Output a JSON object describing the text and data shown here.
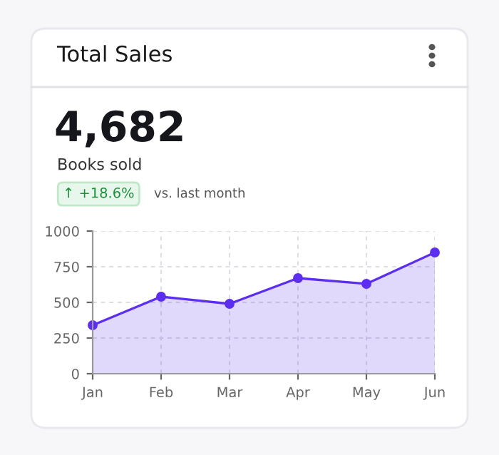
{
  "chart_data": {
    "type": "area",
    "title": "Total Sales",
    "annotations": [
      "4,682",
      "Books sold",
      "↑ +18.6%",
      "vs. last month"
    ],
    "categories": [
      "Jan",
      "Feb",
      "Mar",
      "Apr",
      "May",
      "Jun"
    ],
    "series": [
      {
        "color": "#5b2ef0",
        "values": [
          340,
          540,
          490,
          670,
          630,
          850
        ]
      }
    ],
    "ylim": [
      0,
      1000
    ],
    "yticks": [
      0,
      250,
      500,
      750,
      1000
    ],
    "grid": true,
    "marker": "circle",
    "line_style": "solid"
  }
}
